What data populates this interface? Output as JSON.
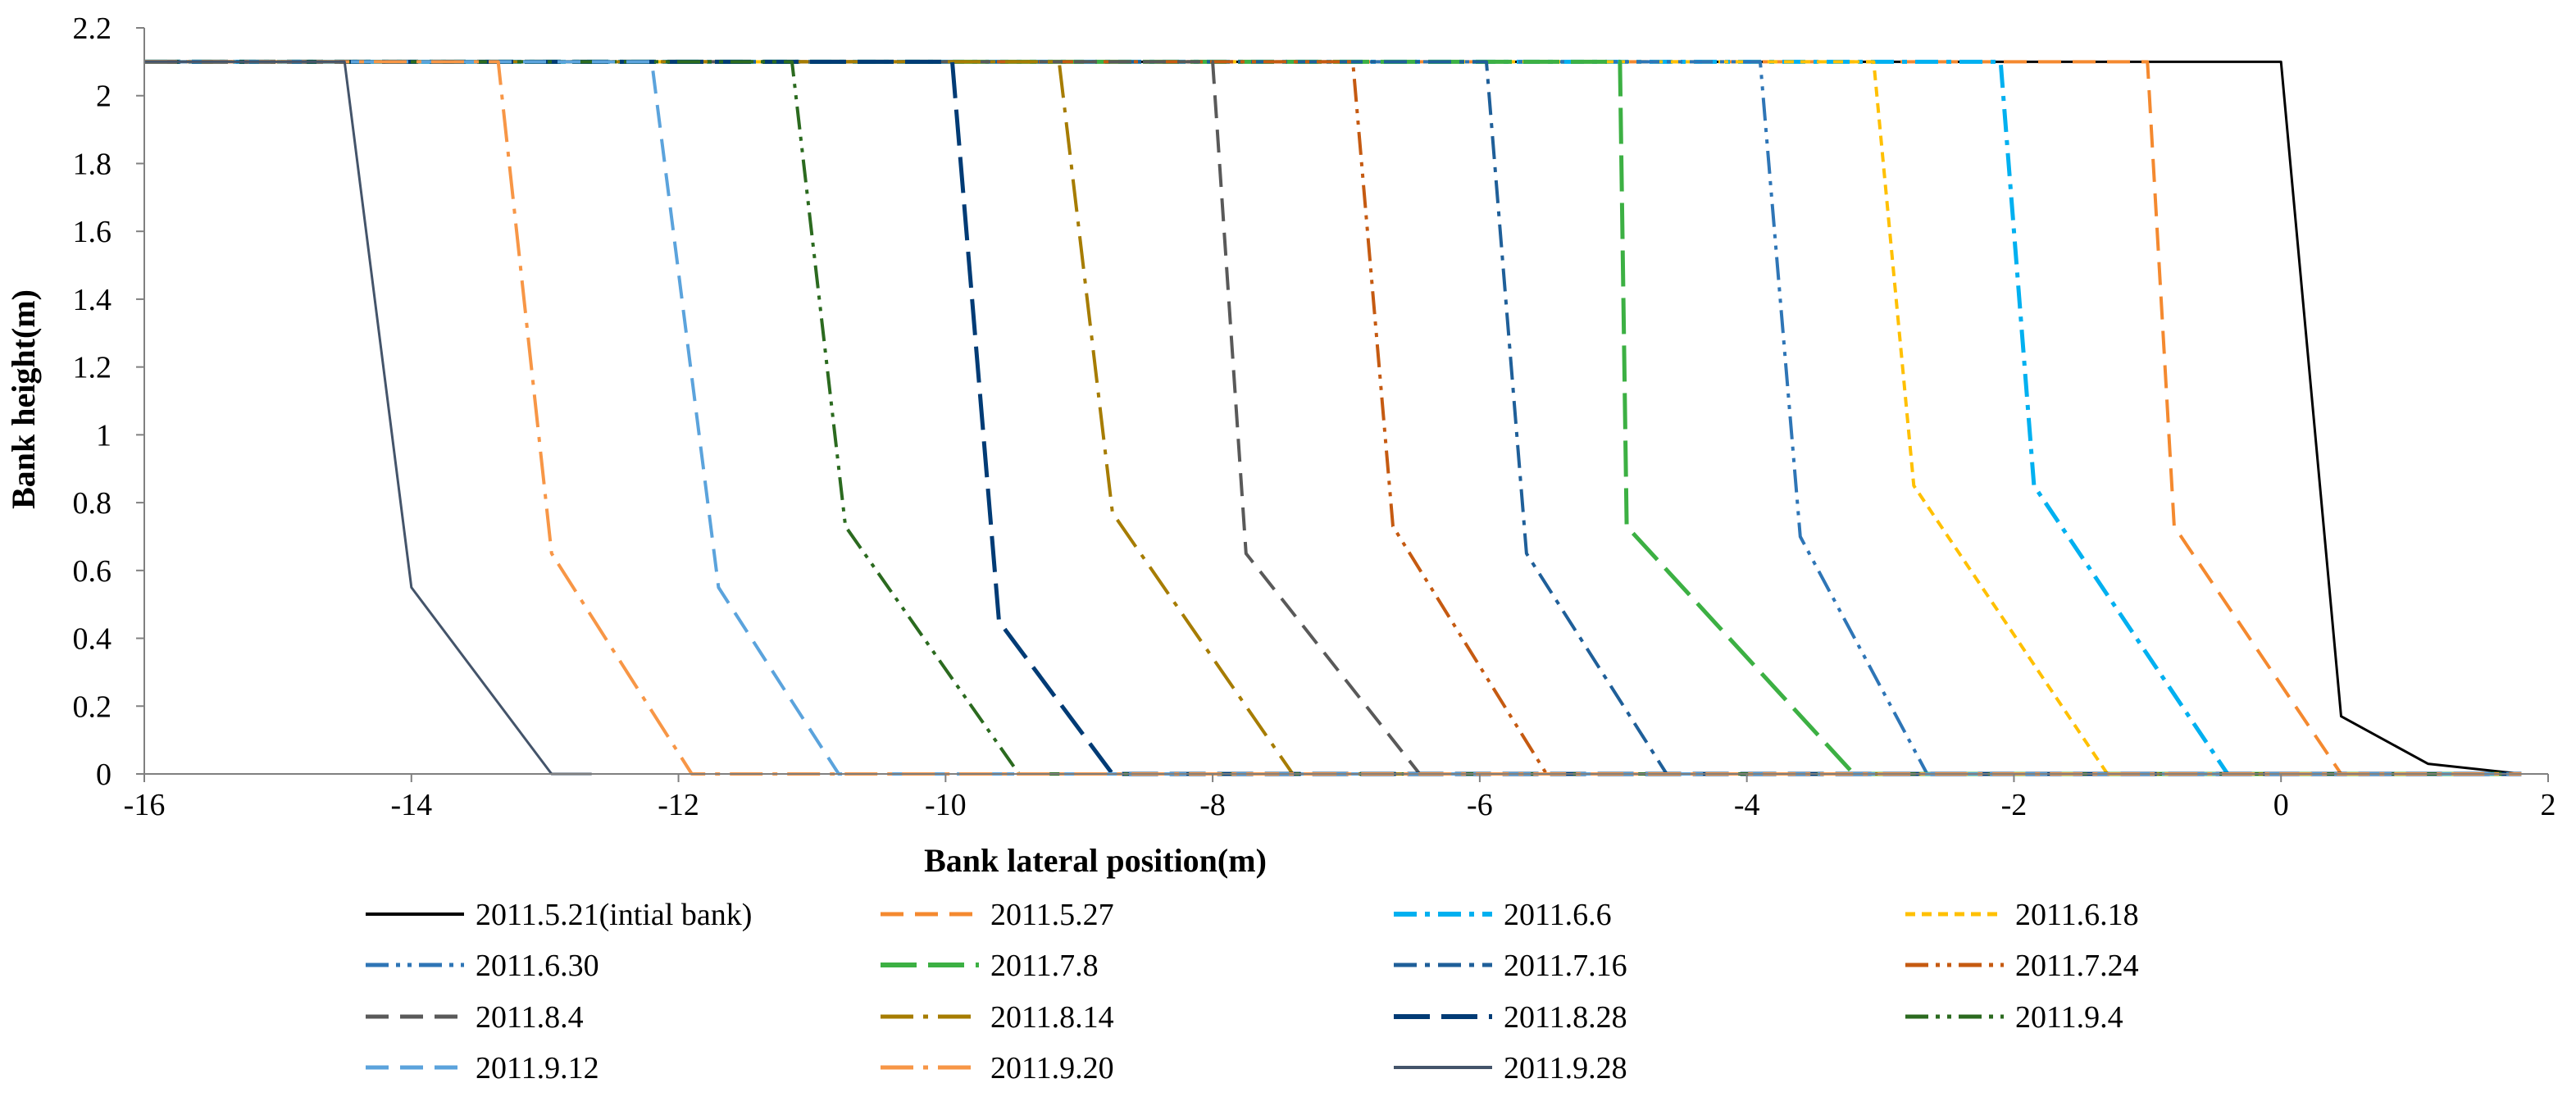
{
  "chart_data": {
    "type": "line",
    "title": "",
    "xlabel": "Bank lateral position(m)",
    "ylabel": "Bank height(m)",
    "xlim": [
      -16,
      2
    ],
    "ylim": [
      0,
      2.2
    ],
    "x_ticks": [
      -16,
      -14,
      -12,
      -10,
      -8,
      -6,
      -4,
      -2,
      0,
      2
    ],
    "y_ticks": [
      0,
      0.2,
      0.4,
      0.6,
      0.8,
      1,
      1.2,
      1.4,
      1.6,
      1.8,
      2,
      2.2
    ],
    "x_tick_labels": [
      "-16",
      "-14",
      "-12",
      "-10",
      "-8",
      "-6",
      "-4",
      "-2",
      "0",
      "2"
    ],
    "y_tick_labels": [
      "0",
      "0.2",
      "0.4",
      "0.6",
      "0.8",
      "1",
      "1.2",
      "1.4",
      "1.6",
      "1.8",
      "2",
      "2.2"
    ],
    "grid": false,
    "legend_position": "bottom",
    "series": [
      {
        "name": "2011.5.21(intial bank)",
        "color": "#000000",
        "dash": "solid",
        "points": [
          [
            -16,
            2.1
          ],
          [
            0.0,
            2.1
          ],
          [
            0.45,
            0.17
          ],
          [
            1.1,
            0.03
          ],
          [
            1.8,
            0.0
          ]
        ]
      },
      {
        "name": "2011.5.27",
        "color": "#f4892f",
        "dash": "dash",
        "points": [
          [
            -16,
            2.1
          ],
          [
            -1.0,
            2.1
          ],
          [
            -0.8,
            0.73
          ],
          [
            0.45,
            0.0
          ],
          [
            1.8,
            0.0
          ]
        ]
      },
      {
        "name": "2011.6.6",
        "color": "#00b0f0",
        "dash": "dashdot",
        "points": [
          [
            -16,
            2.1
          ],
          [
            -2.1,
            2.1
          ],
          [
            -1.85,
            0.85
          ],
          [
            -0.4,
            0.0
          ],
          [
            1.8,
            0.0
          ]
        ]
      },
      {
        "name": "2011.6.18",
        "color": "#ffc000",
        "dash": "shortdash",
        "points": [
          [
            -16,
            2.1
          ],
          [
            -3.05,
            2.1
          ],
          [
            -2.75,
            0.85
          ],
          [
            -1.3,
            0.0
          ],
          [
            1.8,
            0.0
          ]
        ]
      },
      {
        "name": "2011.6.30",
        "color": "#2e75b6",
        "dash": "dashdotdot",
        "points": [
          [
            -16,
            2.1
          ],
          [
            -3.9,
            2.1
          ],
          [
            -3.6,
            0.7
          ],
          [
            -2.65,
            0.0
          ],
          [
            1.8,
            0.0
          ]
        ]
      },
      {
        "name": "2011.7.8",
        "color": "#3cb043",
        "dash": "longdash",
        "points": [
          [
            -16,
            2.1
          ],
          [
            -4.95,
            2.1
          ],
          [
            -4.9,
            0.73
          ],
          [
            -3.2,
            0.0
          ],
          [
            1.8,
            0.0
          ]
        ]
      },
      {
        "name": "2011.7.16",
        "color": "#1f5f99",
        "dash": "dashdot",
        "points": [
          [
            -16,
            2.1
          ],
          [
            -5.95,
            2.1
          ],
          [
            -5.65,
            0.65
          ],
          [
            -4.6,
            0.0
          ],
          [
            1.8,
            0.0
          ]
        ]
      },
      {
        "name": "2011.7.24",
        "color": "#c55a11",
        "dash": "dashdotdot",
        "points": [
          [
            -16,
            2.1
          ],
          [
            -6.95,
            2.1
          ],
          [
            -6.65,
            0.73
          ],
          [
            -5.5,
            0.0
          ],
          [
            1.8,
            0.0
          ]
        ]
      },
      {
        "name": "2011.8.4",
        "color": "#595959",
        "dash": "dash",
        "points": [
          [
            -16,
            2.1
          ],
          [
            -8.0,
            2.1
          ],
          [
            -7.75,
            0.65
          ],
          [
            -6.45,
            0.0
          ],
          [
            1.8,
            0.0
          ]
        ]
      },
      {
        "name": "2011.8.14",
        "color": "#a67c00",
        "dash": "longdashdot",
        "points": [
          [
            -16,
            2.1
          ],
          [
            -9.15,
            2.1
          ],
          [
            -8.75,
            0.77
          ],
          [
            -7.4,
            0.0
          ],
          [
            1.8,
            0.0
          ]
        ]
      },
      {
        "name": "2011.8.28",
        "color": "#003b75",
        "dash": "longdash",
        "points": [
          [
            -16,
            2.1
          ],
          [
            -9.95,
            2.1
          ],
          [
            -9.6,
            0.45
          ],
          [
            -8.75,
            0.0
          ],
          [
            1.8,
            0.0
          ]
        ]
      },
      {
        "name": "2011.9.4",
        "color": "#2b6a1f",
        "dash": "dashdotdot",
        "points": [
          [
            -16,
            2.1
          ],
          [
            -11.15,
            2.1
          ],
          [
            -10.75,
            0.73
          ],
          [
            -9.45,
            0.0
          ],
          [
            1.8,
            0.0
          ]
        ]
      },
      {
        "name": "2011.9.12",
        "color": "#5ba3dc",
        "dash": "dash",
        "points": [
          [
            -16,
            2.1
          ],
          [
            -12.2,
            2.1
          ],
          [
            -11.7,
            0.55
          ],
          [
            -10.8,
            0.0
          ],
          [
            1.8,
            0.0
          ]
        ]
      },
      {
        "name": "2011.9.20",
        "color": "#f79646",
        "dash": "longdashdot",
        "points": [
          [
            -16,
            2.1
          ],
          [
            -13.35,
            2.1
          ],
          [
            -12.95,
            0.65
          ],
          [
            -11.9,
            0.0
          ],
          [
            1.8,
            0.0
          ]
        ]
      },
      {
        "name": "2011.9.28",
        "color": "#44546a",
        "dash": "solid",
        "points": [
          [
            -16,
            2.1
          ],
          [
            -14.5,
            2.1
          ],
          [
            -14.0,
            0.55
          ],
          [
            -12.95,
            0.0
          ],
          [
            -12.65,
            0.0
          ]
        ]
      }
    ]
  }
}
